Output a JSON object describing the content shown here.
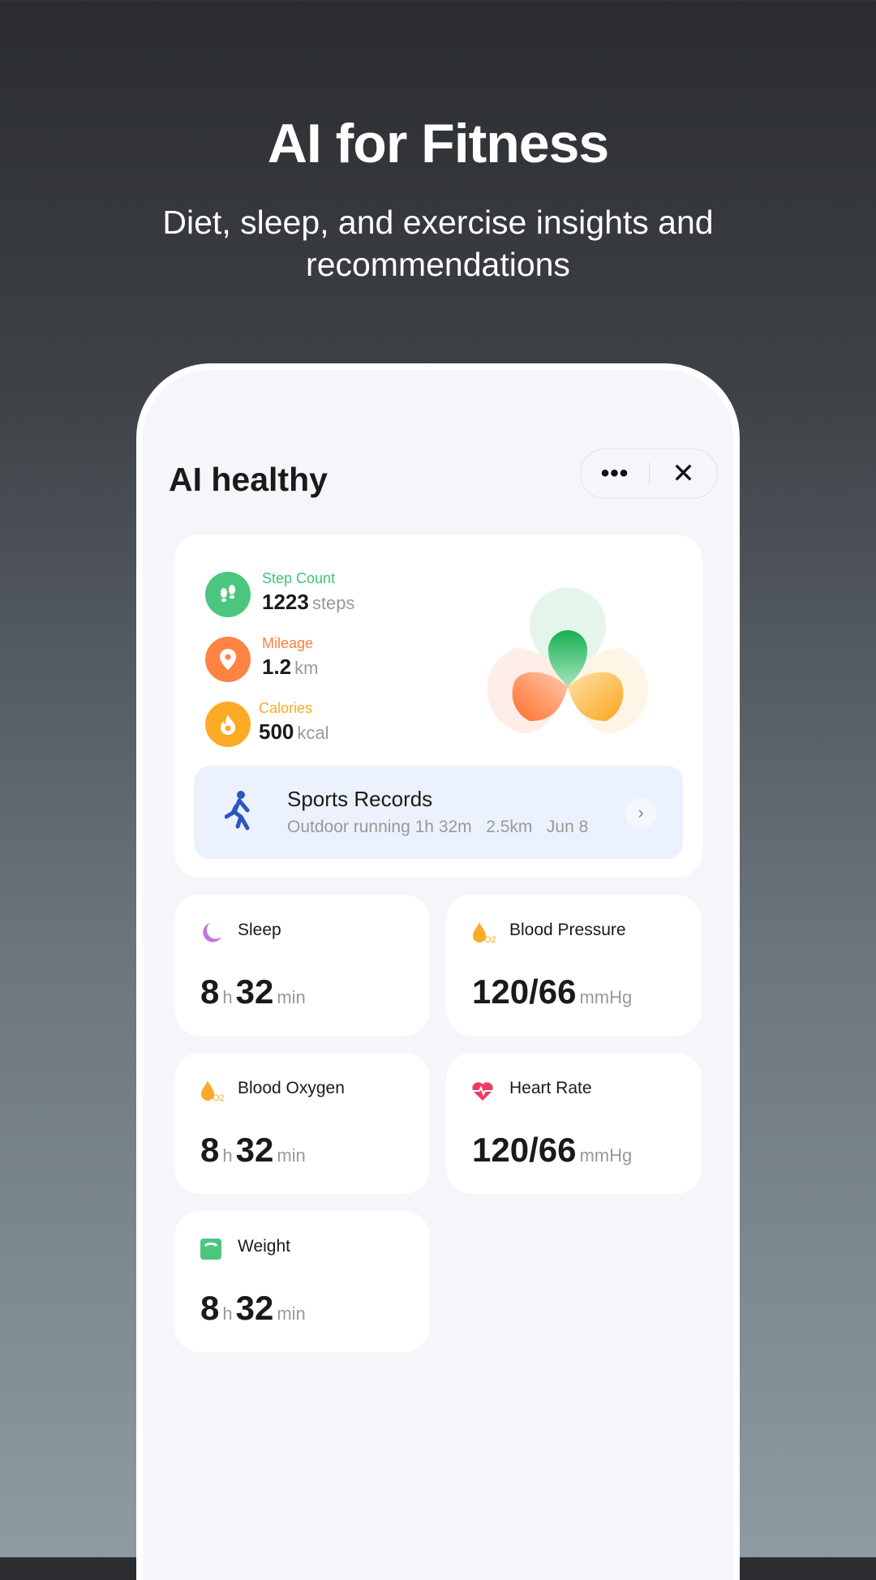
{
  "hero": {
    "title": "AI for Fitness",
    "subtitle": "Diet, sleep, and exercise insights and recommendations"
  },
  "app": {
    "title": "AI healthy",
    "more_label": "•••",
    "close_label": "✕"
  },
  "metrics": [
    {
      "label": "Step Count",
      "value": "1223",
      "unit": "steps",
      "color": "#3ec47a",
      "icon": "footprints-icon"
    },
    {
      "label": "Mileage",
      "value": "1.2",
      "unit": "km",
      "color": "#ff7f3e",
      "icon": "location-pin-icon"
    },
    {
      "label": "Calories",
      "value": "500",
      "unit": "kcal",
      "color": "#fbab26",
      "icon": "flame-icon"
    }
  ],
  "sports": {
    "title": "Sports Records",
    "activity": "Outdoor running",
    "duration": "1h 32m",
    "distance": "2.5km",
    "date": "Jun 8",
    "chevron": "›"
  },
  "cards": [
    {
      "title": "Sleep",
      "v1": "8",
      "u1": "h",
      "v2": "32",
      "u2": "min",
      "icon": "moon-icon"
    },
    {
      "title": "Blood Pressure",
      "v1": "120/66",
      "u1": "mmHg",
      "icon": "blood-drop-icon"
    },
    {
      "title": "Blood Oxygen",
      "v1": "8",
      "u1": "h",
      "v2": "32",
      "u2": "min",
      "icon": "blood-drop-o2-icon"
    },
    {
      "title": "Heart Rate",
      "v1": "120/66",
      "u1": "mmHg",
      "icon": "heart-rate-icon"
    },
    {
      "title": "Weight",
      "v1": "8",
      "u1": "h",
      "v2": "32",
      "u2": "min",
      "icon": "scale-icon"
    }
  ]
}
